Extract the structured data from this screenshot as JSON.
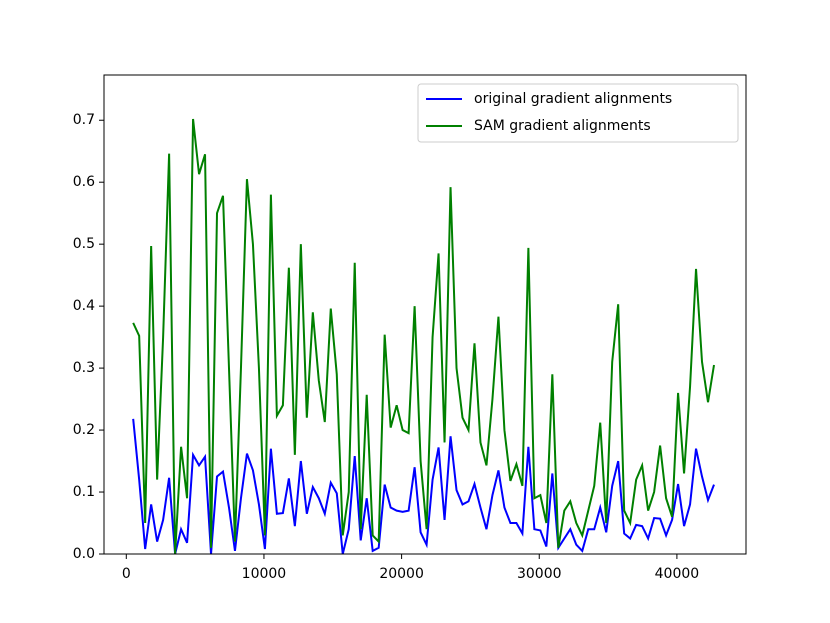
{
  "chart_data": {
    "type": "line",
    "x": [
      500,
      935,
      1370,
      1805,
      2240,
      2675,
      3110,
      3545,
      3980,
      4415,
      4850,
      5285,
      5720,
      6155,
      6590,
      7025,
      7460,
      7895,
      8330,
      8765,
      9200,
      9635,
      10070,
      10505,
      10940,
      11375,
      11810,
      12245,
      12680,
      13115,
      13550,
      13985,
      14420,
      14855,
      15290,
      15725,
      16160,
      16595,
      17030,
      17465,
      17900,
      18335,
      18770,
      19205,
      19640,
      20075,
      20510,
      20945,
      21380,
      21815,
      22250,
      22685,
      23120,
      23555,
      23990,
      24425,
      24860,
      25295,
      25730,
      26165,
      26600,
      27035,
      27470,
      27905,
      28340,
      28775,
      29210,
      29645,
      30080,
      30515,
      30950,
      31385,
      31820,
      32255,
      32690,
      33125,
      33560,
      33995,
      34430,
      34865,
      35300,
      35735,
      36170,
      36605,
      37040,
      37475,
      37910,
      38345,
      38780,
      39215,
      39650,
      40085,
      40520,
      40955,
      41390,
      41825,
      42260,
      42695
    ],
    "series": [
      {
        "name": "original gradient alignments",
        "color": "#0000ff",
        "values": [
          0.218,
          0.12,
          0.008,
          0.08,
          0.02,
          0.055,
          0.123,
          0.0,
          0.04,
          0.018,
          0.16,
          0.143,
          0.157,
          0.0,
          0.125,
          0.133,
          0.075,
          0.005,
          0.09,
          0.162,
          0.135,
          0.08,
          0.008,
          0.17,
          0.065,
          0.066,
          0.122,
          0.045,
          0.15,
          0.065,
          0.108,
          0.09,
          0.065,
          0.115,
          0.098,
          0.0,
          0.04,
          0.158,
          0.022,
          0.09,
          0.005,
          0.01,
          0.112,
          0.075,
          0.07,
          0.068,
          0.07,
          0.14,
          0.035,
          0.015,
          0.12,
          0.172,
          0.055,
          0.19,
          0.103,
          0.08,
          0.085,
          0.113,
          0.075,
          0.04,
          0.095,
          0.135,
          0.075,
          0.05,
          0.05,
          0.033,
          0.173,
          0.04,
          0.038,
          0.012,
          0.13,
          0.01,
          0.025,
          0.04,
          0.015,
          0.005,
          0.04,
          0.04,
          0.075,
          0.035,
          0.11,
          0.15,
          0.033,
          0.025,
          0.047,
          0.045,
          0.025,
          0.058,
          0.057,
          0.03,
          0.055,
          0.113,
          0.045,
          0.08,
          0.17,
          0.125,
          0.087,
          0.112
        ]
      },
      {
        "name": "SAM gradient alignments",
        "color": "#008000",
        "values": [
          0.373,
          0.352,
          0.05,
          0.497,
          0.12,
          0.35,
          0.646,
          0.0,
          0.173,
          0.09,
          0.702,
          0.613,
          0.645,
          0.01,
          0.55,
          0.578,
          0.3,
          0.02,
          0.3,
          0.605,
          0.5,
          0.3,
          0.03,
          0.58,
          0.223,
          0.24,
          0.462,
          0.16,
          0.5,
          0.22,
          0.39,
          0.28,
          0.213,
          0.396,
          0.29,
          0.03,
          0.1,
          0.47,
          0.04,
          0.257,
          0.03,
          0.02,
          0.354,
          0.204,
          0.24,
          0.2,
          0.195,
          0.4,
          0.15,
          0.04,
          0.35,
          0.485,
          0.18,
          0.592,
          0.3,
          0.22,
          0.2,
          0.34,
          0.18,
          0.143,
          0.25,
          0.383,
          0.2,
          0.118,
          0.145,
          0.11,
          0.494,
          0.09,
          0.095,
          0.05,
          0.29,
          0.01,
          0.07,
          0.085,
          0.05,
          0.03,
          0.07,
          0.11,
          0.212,
          0.05,
          0.31,
          0.403,
          0.07,
          0.05,
          0.12,
          0.143,
          0.07,
          0.1,
          0.175,
          0.09,
          0.06,
          0.26,
          0.13,
          0.27,
          0.46,
          0.31,
          0.245,
          0.305
        ]
      }
    ],
    "xlim": [
      -1620,
      45020
    ],
    "xticks": [
      0,
      10000,
      20000,
      30000,
      40000
    ],
    "ylim": [
      0,
      0.773
    ],
    "yticks": [
      {
        "value": 0,
        "label": "0.0"
      },
      0.1,
      0.2,
      0.3,
      0.4,
      0.5,
      0.6,
      0.7
    ],
    "legend": "upper right",
    "grid": false
  }
}
